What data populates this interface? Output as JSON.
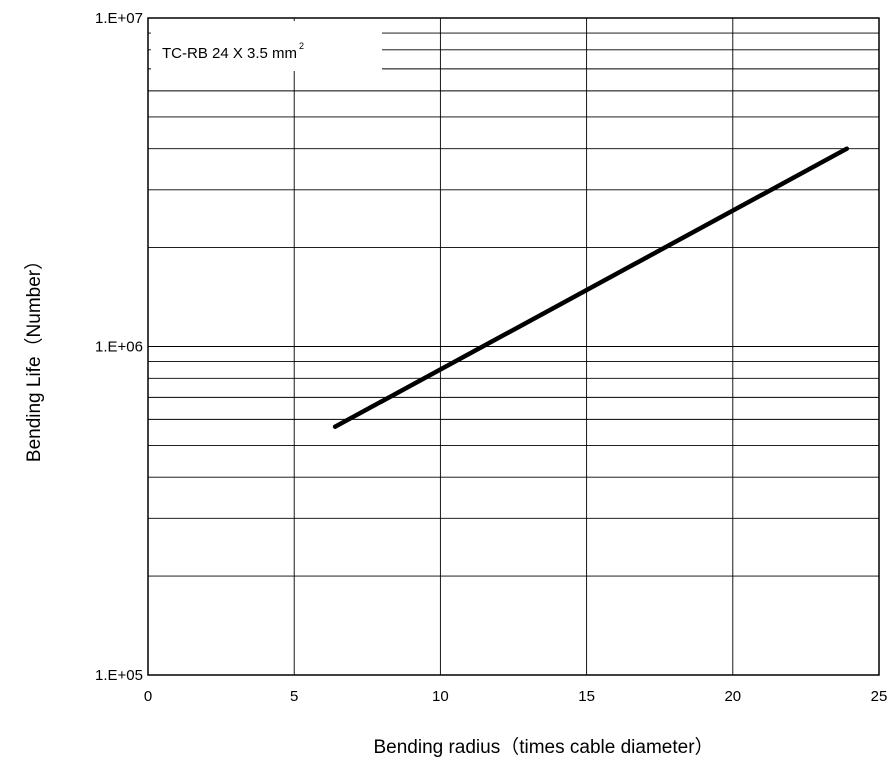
{
  "chart_data": {
    "type": "line",
    "xlabel": "Bending radius（times cable diameter）",
    "ylabel": "Bending Life（Number）",
    "xlim": [
      0,
      25
    ],
    "ylim": [
      100000,
      10000000
    ],
    "yscale": "log",
    "x_ticks": [
      0,
      5,
      10,
      15,
      20,
      25
    ],
    "x_tick_labels": [
      "0",
      "5",
      "10",
      "15",
      "20",
      "25"
    ],
    "y_ticks": [
      100000,
      1000000,
      10000000
    ],
    "y_tick_labels": [
      "1.E+05",
      "1.E+06",
      "1.E+07"
    ],
    "grid": true,
    "legend": {
      "text": "TC-RB 24 X 3.5 mm",
      "superscript": "2",
      "placement": "top-left"
    },
    "series": [
      {
        "x": [
          6.4,
          23.9
        ],
        "y": [
          570000,
          4000000
        ],
        "color": "#000000"
      }
    ]
  }
}
